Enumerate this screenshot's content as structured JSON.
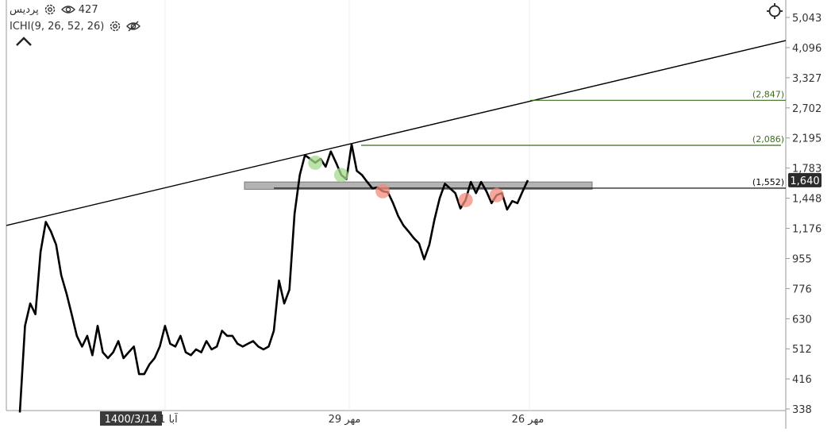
{
  "legend": {
    "symbol_name": "پردیس",
    "views": "427",
    "indicator": "ICHI(9, 26, 52, 26)"
  },
  "icons": [
    "settings-icon",
    "eye-icon",
    "eye-off-icon",
    "chevron-up-icon",
    "crosshair-icon"
  ],
  "colors": {
    "price_line": "#000000",
    "target_line": "#3d6b1f",
    "support_band": "#b3b3b3",
    "marker_green": "#a6d98c",
    "marker_red": "#f28b79",
    "last_price_bg": "#2b2b2b"
  },
  "chart_data": {
    "type": "line",
    "scale": "log",
    "ylim": [
      338,
      5600
    ],
    "y_ticks": [
      5043,
      4096,
      3327,
      2702,
      2195,
      1783,
      1448,
      1176,
      955,
      776,
      630,
      512,
      416,
      338
    ],
    "y_tick_labels": [
      "5,043",
      "4,096",
      "3,327",
      "2,702",
      "2,195",
      "1,783",
      "1,448",
      "1,176",
      "955",
      "776",
      "630",
      "512",
      "416",
      "338"
    ],
    "x_labels": [
      {
        "text": "1400/3/14",
        "highlighted": true
      },
      {
        "text": "1 آبا",
        "highlighted": false
      },
      {
        "text": "29 مهر",
        "highlighted": false
      },
      {
        "text": "26 مهر",
        "highlighted": false
      }
    ],
    "series": [
      {
        "values": [
          330,
          600,
          700,
          650,
          1000,
          1230,
          1150,
          1050,
          850,
          750,
          650,
          560,
          520,
          560,
          490,
          600,
          500,
          480,
          500,
          540,
          480,
          500,
          520,
          430,
          430,
          460,
          480,
          520,
          600,
          530,
          520,
          560,
          500,
          490,
          510,
          500,
          540,
          510,
          520,
          580,
          560,
          560,
          530,
          520,
          530,
          540,
          520,
          510,
          520,
          580,
          820,
          700,
          770,
          1300,
          1700,
          1950,
          1900,
          1850,
          1900,
          1800,
          2000,
          1850,
          1700,
          1650,
          2100,
          1750,
          1700,
          1620,
          1550,
          1560,
          1520,
          1510,
          1400,
          1280,
          1200,
          1150,
          1100,
          1060,
          950,
          1050,
          1250,
          1450,
          1600,
          1550,
          1500,
          1350,
          1430,
          1620,
          1500,
          1620,
          1520,
          1400,
          1480,
          1500,
          1340,
          1420,
          1400,
          1520,
          1640
        ]
      }
    ],
    "trendline": {
      "start": 1200,
      "end": 4300
    },
    "support_band": {
      "low": 1540,
      "high": 1620
    },
    "target_levels": [
      {
        "value": 2847,
        "label": "(2,847)"
      },
      {
        "value": 2086,
        "label": "(2,086)"
      },
      {
        "value": 1552,
        "label": "(1,552)"
      }
    ],
    "last_price": {
      "value": 1640,
      "label": "1,640"
    },
    "markers": [
      {
        "index": 57,
        "color": "green"
      },
      {
        "index": 62,
        "color": "green"
      },
      {
        "index": 70,
        "color": "red"
      },
      {
        "index": 86,
        "color": "red"
      },
      {
        "index": 92,
        "color": "red"
      }
    ]
  }
}
